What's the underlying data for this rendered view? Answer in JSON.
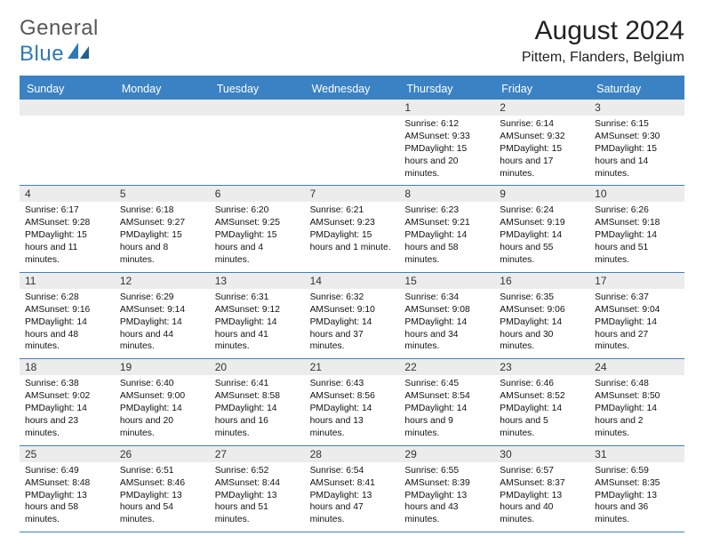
{
  "brand": {
    "part1": "General",
    "part2": "Blue"
  },
  "title": "August 2024",
  "location": "Pittem, Flanders, Belgium",
  "colors": {
    "header_bg": "#3b82c4",
    "header_text": "#ffffff",
    "daynum_bg": "#ececec",
    "rule": "#3b82c4",
    "text": "#111111",
    "brand_gray": "#585858",
    "brand_blue": "#2f79b8"
  },
  "typography": {
    "title_size_pt": 22,
    "location_size_pt": 12,
    "header_size_pt": 9.5,
    "cell_size_pt": 7.7
  },
  "day_names": [
    "Sunday",
    "Monday",
    "Tuesday",
    "Wednesday",
    "Thursday",
    "Friday",
    "Saturday"
  ],
  "weeks": [
    [
      null,
      null,
      null,
      null,
      {
        "n": "1",
        "sr": "Sunrise: 6:12 AM",
        "ss": "Sunset: 9:33 PM",
        "dl": "Daylight: 15 hours and 20 minutes."
      },
      {
        "n": "2",
        "sr": "Sunrise: 6:14 AM",
        "ss": "Sunset: 9:32 PM",
        "dl": "Daylight: 15 hours and 17 minutes."
      },
      {
        "n": "3",
        "sr": "Sunrise: 6:15 AM",
        "ss": "Sunset: 9:30 PM",
        "dl": "Daylight: 15 hours and 14 minutes."
      }
    ],
    [
      {
        "n": "4",
        "sr": "Sunrise: 6:17 AM",
        "ss": "Sunset: 9:28 PM",
        "dl": "Daylight: 15 hours and 11 minutes."
      },
      {
        "n": "5",
        "sr": "Sunrise: 6:18 AM",
        "ss": "Sunset: 9:27 PM",
        "dl": "Daylight: 15 hours and 8 minutes."
      },
      {
        "n": "6",
        "sr": "Sunrise: 6:20 AM",
        "ss": "Sunset: 9:25 PM",
        "dl": "Daylight: 15 hours and 4 minutes."
      },
      {
        "n": "7",
        "sr": "Sunrise: 6:21 AM",
        "ss": "Sunset: 9:23 PM",
        "dl": "Daylight: 15 hours and 1 minute."
      },
      {
        "n": "8",
        "sr": "Sunrise: 6:23 AM",
        "ss": "Sunset: 9:21 PM",
        "dl": "Daylight: 14 hours and 58 minutes."
      },
      {
        "n": "9",
        "sr": "Sunrise: 6:24 AM",
        "ss": "Sunset: 9:19 PM",
        "dl": "Daylight: 14 hours and 55 minutes."
      },
      {
        "n": "10",
        "sr": "Sunrise: 6:26 AM",
        "ss": "Sunset: 9:18 PM",
        "dl": "Daylight: 14 hours and 51 minutes."
      }
    ],
    [
      {
        "n": "11",
        "sr": "Sunrise: 6:28 AM",
        "ss": "Sunset: 9:16 PM",
        "dl": "Daylight: 14 hours and 48 minutes."
      },
      {
        "n": "12",
        "sr": "Sunrise: 6:29 AM",
        "ss": "Sunset: 9:14 PM",
        "dl": "Daylight: 14 hours and 44 minutes."
      },
      {
        "n": "13",
        "sr": "Sunrise: 6:31 AM",
        "ss": "Sunset: 9:12 PM",
        "dl": "Daylight: 14 hours and 41 minutes."
      },
      {
        "n": "14",
        "sr": "Sunrise: 6:32 AM",
        "ss": "Sunset: 9:10 PM",
        "dl": "Daylight: 14 hours and 37 minutes."
      },
      {
        "n": "15",
        "sr": "Sunrise: 6:34 AM",
        "ss": "Sunset: 9:08 PM",
        "dl": "Daylight: 14 hours and 34 minutes."
      },
      {
        "n": "16",
        "sr": "Sunrise: 6:35 AM",
        "ss": "Sunset: 9:06 PM",
        "dl": "Daylight: 14 hours and 30 minutes."
      },
      {
        "n": "17",
        "sr": "Sunrise: 6:37 AM",
        "ss": "Sunset: 9:04 PM",
        "dl": "Daylight: 14 hours and 27 minutes."
      }
    ],
    [
      {
        "n": "18",
        "sr": "Sunrise: 6:38 AM",
        "ss": "Sunset: 9:02 PM",
        "dl": "Daylight: 14 hours and 23 minutes."
      },
      {
        "n": "19",
        "sr": "Sunrise: 6:40 AM",
        "ss": "Sunset: 9:00 PM",
        "dl": "Daylight: 14 hours and 20 minutes."
      },
      {
        "n": "20",
        "sr": "Sunrise: 6:41 AM",
        "ss": "Sunset: 8:58 PM",
        "dl": "Daylight: 14 hours and 16 minutes."
      },
      {
        "n": "21",
        "sr": "Sunrise: 6:43 AM",
        "ss": "Sunset: 8:56 PM",
        "dl": "Daylight: 14 hours and 13 minutes."
      },
      {
        "n": "22",
        "sr": "Sunrise: 6:45 AM",
        "ss": "Sunset: 8:54 PM",
        "dl": "Daylight: 14 hours and 9 minutes."
      },
      {
        "n": "23",
        "sr": "Sunrise: 6:46 AM",
        "ss": "Sunset: 8:52 PM",
        "dl": "Daylight: 14 hours and 5 minutes."
      },
      {
        "n": "24",
        "sr": "Sunrise: 6:48 AM",
        "ss": "Sunset: 8:50 PM",
        "dl": "Daylight: 14 hours and 2 minutes."
      }
    ],
    [
      {
        "n": "25",
        "sr": "Sunrise: 6:49 AM",
        "ss": "Sunset: 8:48 PM",
        "dl": "Daylight: 13 hours and 58 minutes."
      },
      {
        "n": "26",
        "sr": "Sunrise: 6:51 AM",
        "ss": "Sunset: 8:46 PM",
        "dl": "Daylight: 13 hours and 54 minutes."
      },
      {
        "n": "27",
        "sr": "Sunrise: 6:52 AM",
        "ss": "Sunset: 8:44 PM",
        "dl": "Daylight: 13 hours and 51 minutes."
      },
      {
        "n": "28",
        "sr": "Sunrise: 6:54 AM",
        "ss": "Sunset: 8:41 PM",
        "dl": "Daylight: 13 hours and 47 minutes."
      },
      {
        "n": "29",
        "sr": "Sunrise: 6:55 AM",
        "ss": "Sunset: 8:39 PM",
        "dl": "Daylight: 13 hours and 43 minutes."
      },
      {
        "n": "30",
        "sr": "Sunrise: 6:57 AM",
        "ss": "Sunset: 8:37 PM",
        "dl": "Daylight: 13 hours and 40 minutes."
      },
      {
        "n": "31",
        "sr": "Sunrise: 6:59 AM",
        "ss": "Sunset: 8:35 PM",
        "dl": "Daylight: 13 hours and 36 minutes."
      }
    ]
  ]
}
